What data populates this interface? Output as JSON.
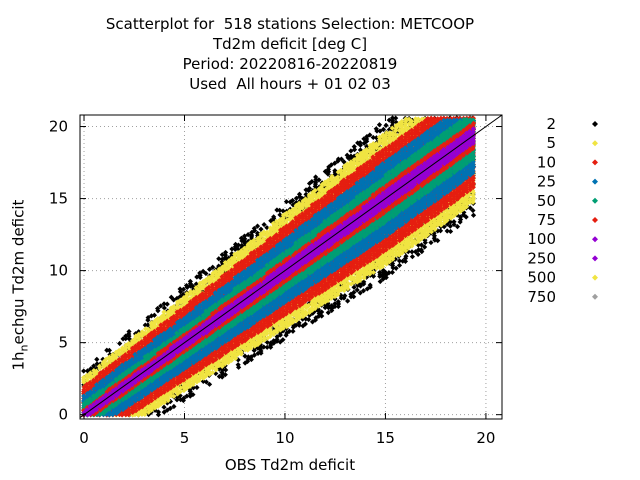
{
  "chart_data": {
    "type": "scatter",
    "title_lines": [
      "Scatterplot for  518 stations Selection: METCOOP",
      "Td2m deficit [deg C]",
      "Period: 20220816-20220819",
      "Used  All hours + 01 02 03"
    ],
    "xlabel": "OBS Td2m deficit",
    "ylabel_main": "1h",
    "ylabel_sub": "n",
    "ylabel_rest": "echgu Td2m deficit",
    "xlim": [
      -0.2,
      20.8
    ],
    "ylim": [
      -0.3,
      20.8
    ],
    "xticks": [
      0,
      5,
      10,
      15,
      20
    ],
    "yticks": [
      0,
      5,
      10,
      15,
      20
    ],
    "grid": true,
    "diagonal": true,
    "legend_position": "right",
    "legend": [
      {
        "label": "2",
        "color": "#000000"
      },
      {
        "label": "5",
        "color": "#f0e442"
      },
      {
        "label": "10",
        "color": "#e51e10"
      },
      {
        "label": "25",
        "color": "#0072b2"
      },
      {
        "label": "50",
        "color": "#009e73"
      },
      {
        "label": "75",
        "color": "#e51e10"
      },
      {
        "label": "100",
        "color": "#9400d3"
      },
      {
        "label": "250",
        "color": "#9400d3"
      },
      {
        "label": "500",
        "color": "#f0e442"
      },
      {
        "label": "750",
        "color": "#a0a0a0"
      }
    ],
    "bands": [
      {
        "count": "2",
        "color": "#000000",
        "halfwidth": [
          3.2,
          5.5
        ],
        "density": 0.38
      },
      {
        "count": "5",
        "color": "#f0e442",
        "halfwidth": [
          2.6,
          4.6
        ],
        "density": 0.9
      },
      {
        "count": "10",
        "color": "#e51e10",
        "halfwidth": [
          2.0,
          3.6
        ],
        "density": 1.0
      },
      {
        "count": "25",
        "color": "#0072b2",
        "halfwidth": [
          1.4,
          2.6
        ],
        "density": 1.0
      },
      {
        "count": "50",
        "color": "#009e73",
        "halfwidth": [
          0.8,
          1.6
        ],
        "density": 1.0
      },
      {
        "count": "75",
        "color": "#e51e10",
        "halfwidth": [
          0.45,
          0.9
        ],
        "density": 1.0
      },
      {
        "count": "100",
        "color": "#9400d3",
        "halfwidth": [
          0.25,
          0.5
        ],
        "density": 1.0
      }
    ]
  }
}
